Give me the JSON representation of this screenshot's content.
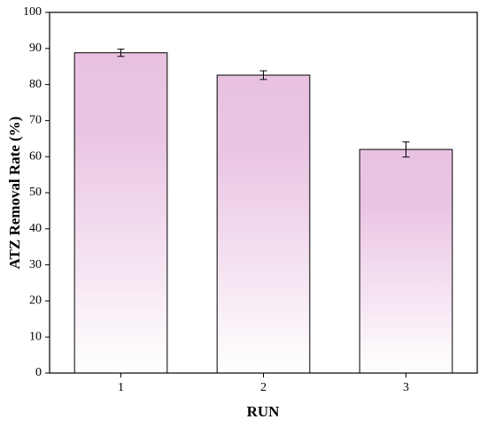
{
  "chart_data": {
    "type": "bar",
    "categories": [
      "1",
      "2",
      "3"
    ],
    "values": [
      88.8,
      82.6,
      62.0
    ],
    "errors": [
      1.0,
      1.2,
      2.1
    ],
    "color": "#e9c2e2",
    "xlabel": "RUN",
    "ylabel": "ATZ Removal Rate (%)",
    "ylim": [
      0,
      100
    ],
    "yticks": [
      0,
      10,
      20,
      30,
      40,
      50,
      60,
      70,
      80,
      90,
      100
    ],
    "grid": false
  }
}
